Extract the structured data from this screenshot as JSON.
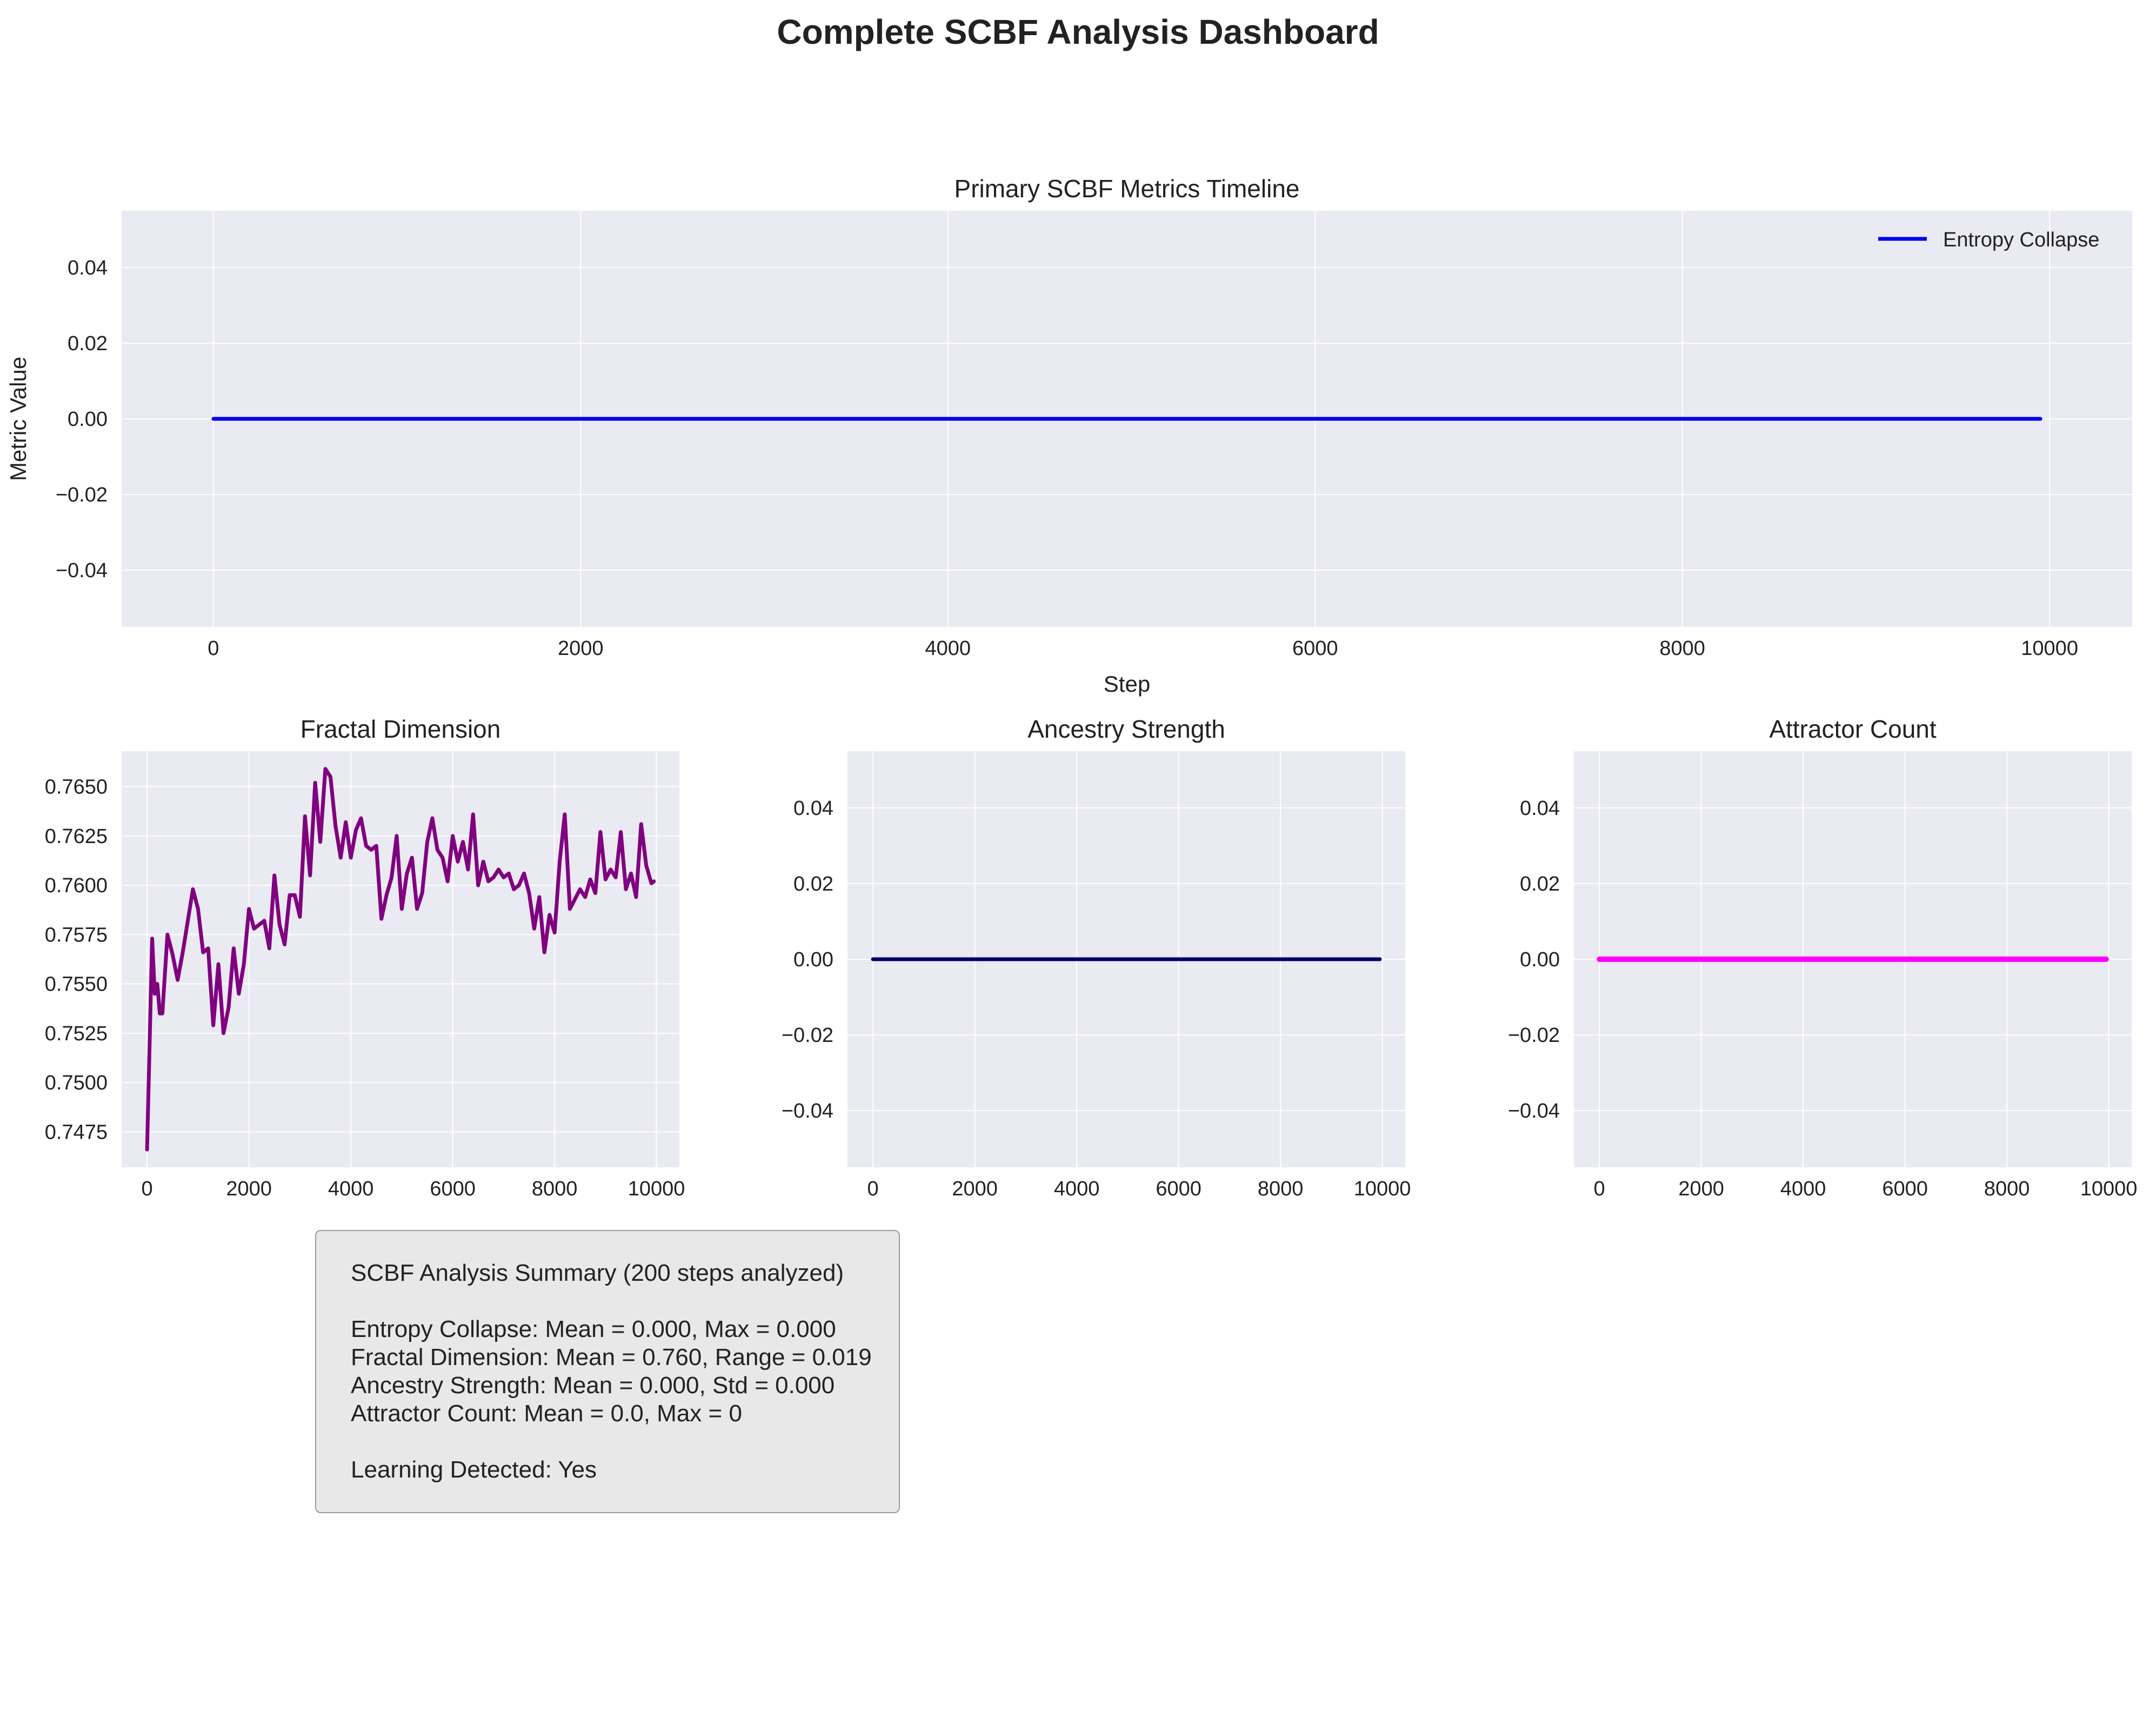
{
  "dashboard": {
    "title": "Complete SCBF Analysis Dashboard"
  },
  "chart_data": [
    {
      "type": "line",
      "title": "Primary SCBF Metrics Timeline",
      "xlabel": "Step",
      "ylabel": "Metric Value",
      "xlim": [
        -500,
        10450
      ],
      "ylim": [
        -0.055,
        0.055
      ],
      "x_ticks": [
        0,
        2000,
        4000,
        6000,
        8000,
        10000
      ],
      "y_ticks": [
        -0.04,
        -0.02,
        0.0,
        0.02,
        0.04
      ],
      "y_tick_labels": [
        "−0.04",
        "−0.02",
        "0.00",
        "0.02",
        "0.04"
      ],
      "grid": true,
      "legend": "top-right",
      "series": [
        {
          "name": "Entropy Collapse",
          "color": "#0000ee",
          "x": [
            0,
            9950
          ],
          "y": [
            0.0,
            0.0
          ]
        }
      ]
    },
    {
      "type": "line",
      "title": "Fractal Dimension",
      "xlim": [
        -500,
        10450
      ],
      "ylim": [
        0.7457,
        0.7668
      ],
      "x_ticks": [
        0,
        2000,
        4000,
        6000,
        8000,
        10000
      ],
      "y_ticks": [
        0.7475,
        0.75,
        0.7525,
        0.755,
        0.7575,
        0.76,
        0.7625,
        0.765
      ],
      "y_tick_labels": [
        "0.7475",
        "0.7500",
        "0.7525",
        "0.7550",
        "0.7575",
        "0.7600",
        "0.7625",
        "0.7650"
      ],
      "grid": true,
      "series": [
        {
          "color": "#800080",
          "x": [
            0,
            100,
            150,
            200,
            250,
            300,
            400,
            500,
            600,
            700,
            800,
            900,
            1000,
            1100,
            1200,
            1300,
            1400,
            1500,
            1600,
            1700,
            1800,
            1900,
            2000,
            2100,
            2200,
            2300,
            2400,
            2500,
            2600,
            2700,
            2800,
            2900,
            3000,
            3100,
            3200,
            3300,
            3400,
            3500,
            3600,
            3700,
            3800,
            3900,
            4000,
            4100,
            4200,
            4300,
            4400,
            4500,
            4600,
            4700,
            4800,
            4900,
            5000,
            5100,
            5200,
            5300,
            5400,
            5500,
            5600,
            5700,
            5800,
            5900,
            6000,
            6100,
            6200,
            6300,
            6400,
            6500,
            6600,
            6700,
            6800,
            6900,
            7000,
            7100,
            7200,
            7300,
            7400,
            7500,
            7600,
            7700,
            7800,
            7900,
            8000,
            8100,
            8200,
            8300,
            8400,
            8500,
            8600,
            8700,
            8800,
            8900,
            9000,
            9100,
            9200,
            9300,
            9400,
            9500,
            9600,
            9700,
            9800,
            9900,
            9950
          ],
          "y": [
            0.7466,
            0.7573,
            0.7545,
            0.755,
            0.7535,
            0.7535,
            0.7575,
            0.7565,
            0.7552,
            0.7566,
            0.7582,
            0.7598,
            0.7588,
            0.7566,
            0.7568,
            0.7529,
            0.756,
            0.7525,
            0.7538,
            0.7568,
            0.7545,
            0.756,
            0.7588,
            0.7578,
            0.758,
            0.7582,
            0.7568,
            0.7605,
            0.758,
            0.757,
            0.7595,
            0.7595,
            0.7584,
            0.7635,
            0.7605,
            0.7652,
            0.7622,
            0.7659,
            0.7655,
            0.763,
            0.7614,
            0.7632,
            0.7614,
            0.7628,
            0.7634,
            0.762,
            0.7618,
            0.762,
            0.7583,
            0.7595,
            0.7604,
            0.7625,
            0.7588,
            0.7606,
            0.7614,
            0.7588,
            0.7596,
            0.7622,
            0.7634,
            0.7618,
            0.7614,
            0.7602,
            0.7625,
            0.7612,
            0.7622,
            0.7608,
            0.7636,
            0.76,
            0.7612,
            0.7602,
            0.7604,
            0.7608,
            0.7604,
            0.7606,
            0.7598,
            0.76,
            0.7606,
            0.7596,
            0.7578,
            0.7594,
            0.7566,
            0.7585,
            0.7576,
            0.7612,
            0.7636,
            0.7588,
            0.7593,
            0.7598,
            0.7594,
            0.7603,
            0.7596,
            0.7627,
            0.7603,
            0.7608,
            0.7604,
            0.7627,
            0.7598,
            0.7606,
            0.7594,
            0.7631,
            0.761,
            0.7601,
            0.7602
          ]
        }
      ]
    },
    {
      "type": "line",
      "title": "Ancestry Strength",
      "xlim": [
        -500,
        10450
      ],
      "ylim": [
        -0.055,
        0.055
      ],
      "x_ticks": [
        0,
        2000,
        4000,
        6000,
        8000,
        10000
      ],
      "y_ticks": [
        -0.04,
        -0.02,
        0.0,
        0.02,
        0.04
      ],
      "y_tick_labels": [
        "−0.04",
        "−0.02",
        "0.00",
        "0.02",
        "0.04"
      ],
      "grid": true,
      "series": [
        {
          "color": "#000066",
          "x": [
            0,
            9950
          ],
          "y": [
            0.0,
            0.0
          ]
        }
      ]
    },
    {
      "type": "line",
      "title": "Attractor Count",
      "xlim": [
        -500,
        10450
      ],
      "ylim": [
        -0.055,
        0.055
      ],
      "x_ticks": [
        0,
        2000,
        4000,
        6000,
        8000,
        10000
      ],
      "y_ticks": [
        -0.04,
        -0.02,
        0.0,
        0.02,
        0.04
      ],
      "y_tick_labels": [
        "−0.04",
        "−0.02",
        "0.00",
        "0.02",
        "0.04"
      ],
      "grid": true,
      "series": [
        {
          "color": "#ff00ff",
          "x": [
            0,
            9950
          ],
          "y": [
            0.0,
            0.0
          ]
        }
      ]
    }
  ],
  "summary": {
    "heading": "SCBF Analysis Summary (200 steps analyzed)",
    "entropy": "Entropy Collapse: Mean = 0.000, Max = 0.000",
    "fractal": "Fractal Dimension: Mean = 0.760, Range = 0.019",
    "ancestry": "Ancestry Strength: Mean = 0.000, Std = 0.000",
    "attractor": "Attractor Count: Mean = 0.0, Max = 0",
    "learning": "Learning Detected: Yes"
  },
  "colors": {
    "panel_bg": "#eaeaf2",
    "grid": "#ffffff",
    "summary_bg": "#e8e8e8"
  }
}
